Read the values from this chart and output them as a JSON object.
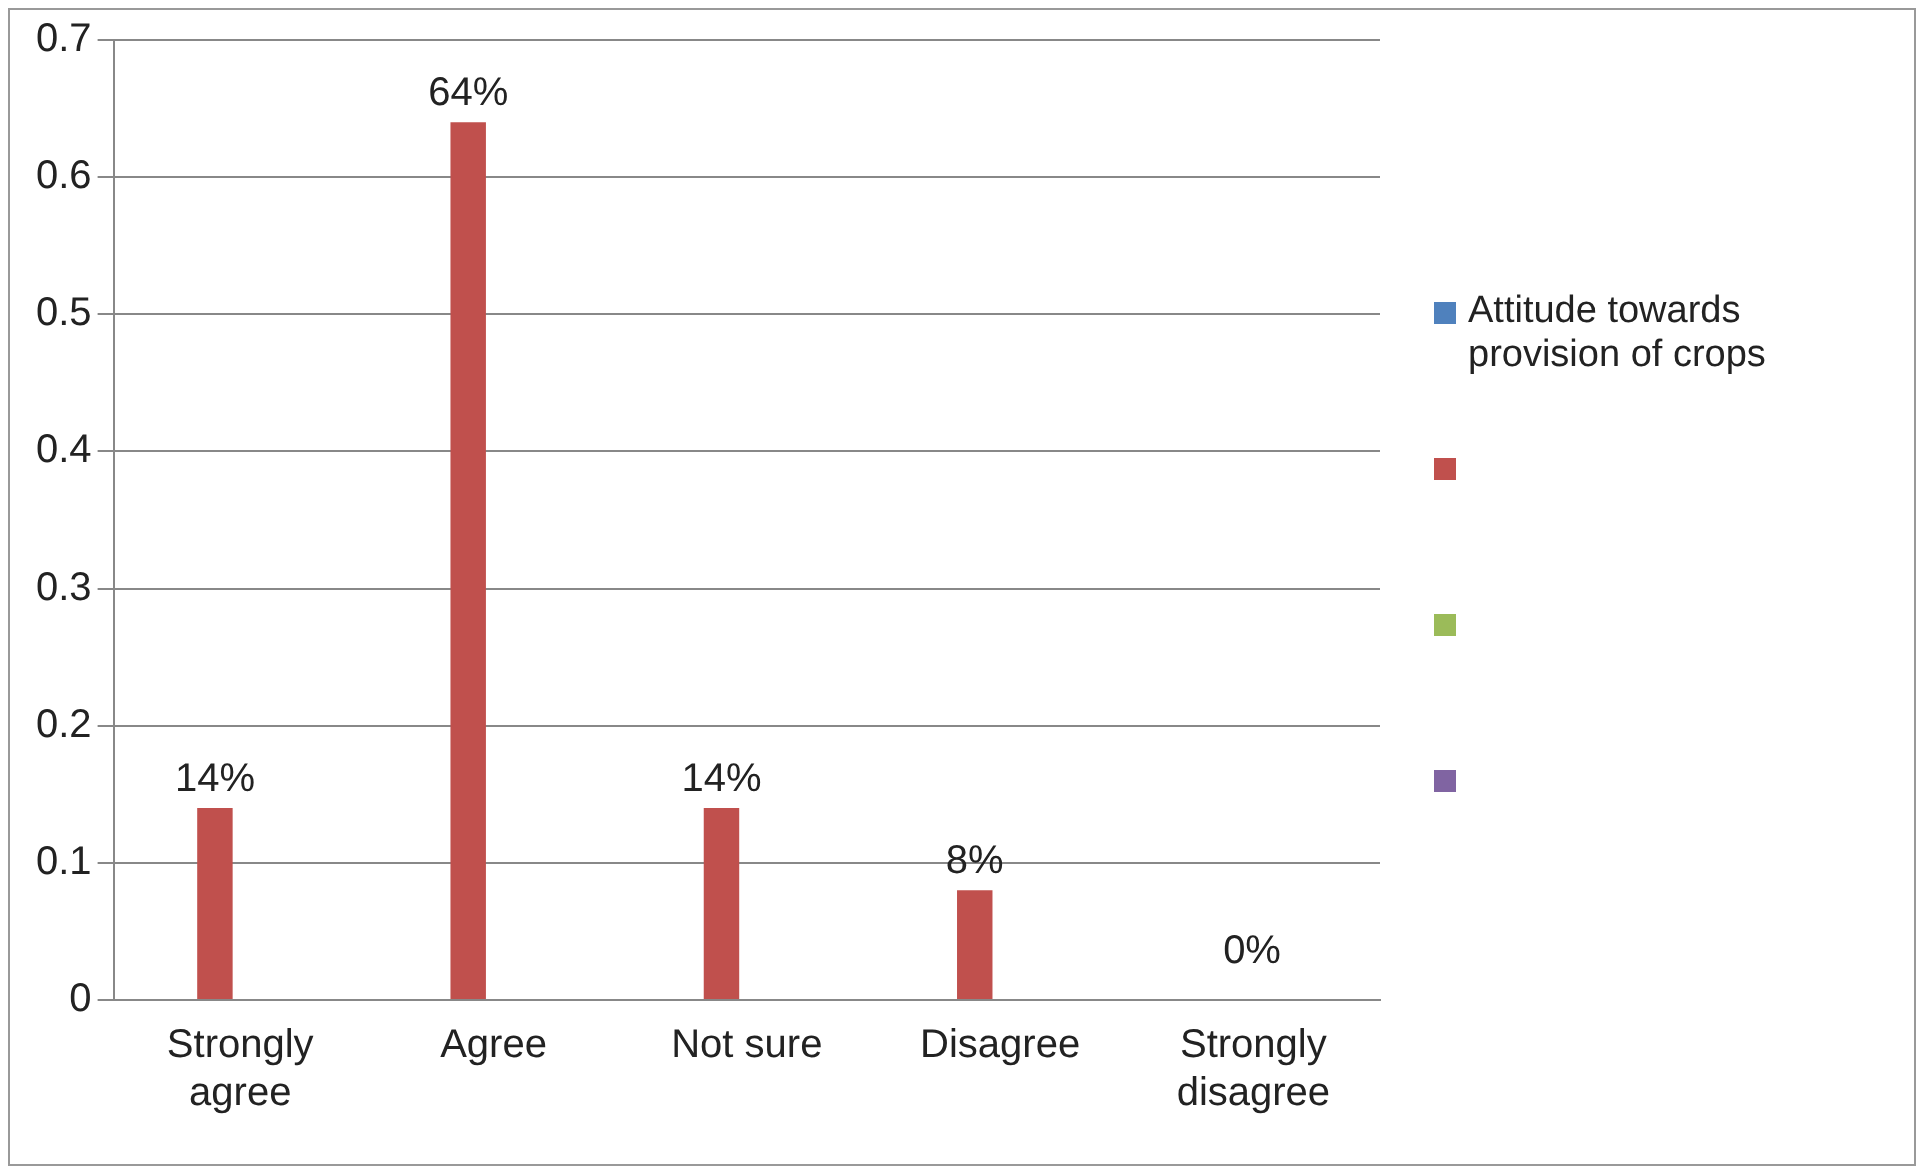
{
  "chart_data": {
    "type": "bar",
    "categories": [
      "Strongly agree",
      "Agree",
      "Not sure",
      "Disagree",
      "Strongly disagree"
    ],
    "series": [
      {
        "name": "Attitude towards provision of crops",
        "color": "#4f81bd",
        "values": [
          null,
          null,
          null,
          null,
          null
        ]
      },
      {
        "color": "#c0504d",
        "values": [
          0.14,
          0.64,
          0.14,
          0.08,
          0
        ],
        "value_labels": [
          "14%",
          "64%",
          "14%",
          "8%",
          "0%"
        ]
      },
      {
        "color": "#9bbb59",
        "values": [
          null,
          null,
          null,
          null,
          null
        ]
      },
      {
        "color": "#8064a2",
        "values": [
          null,
          null,
          null,
          null,
          null
        ]
      }
    ],
    "ylim": [
      0,
      0.7
    ],
    "yticks": [
      0,
      0.1,
      0.2,
      0.3,
      0.4,
      0.5,
      0.6,
      0.7
    ],
    "grid": "y",
    "legend": "right"
  }
}
